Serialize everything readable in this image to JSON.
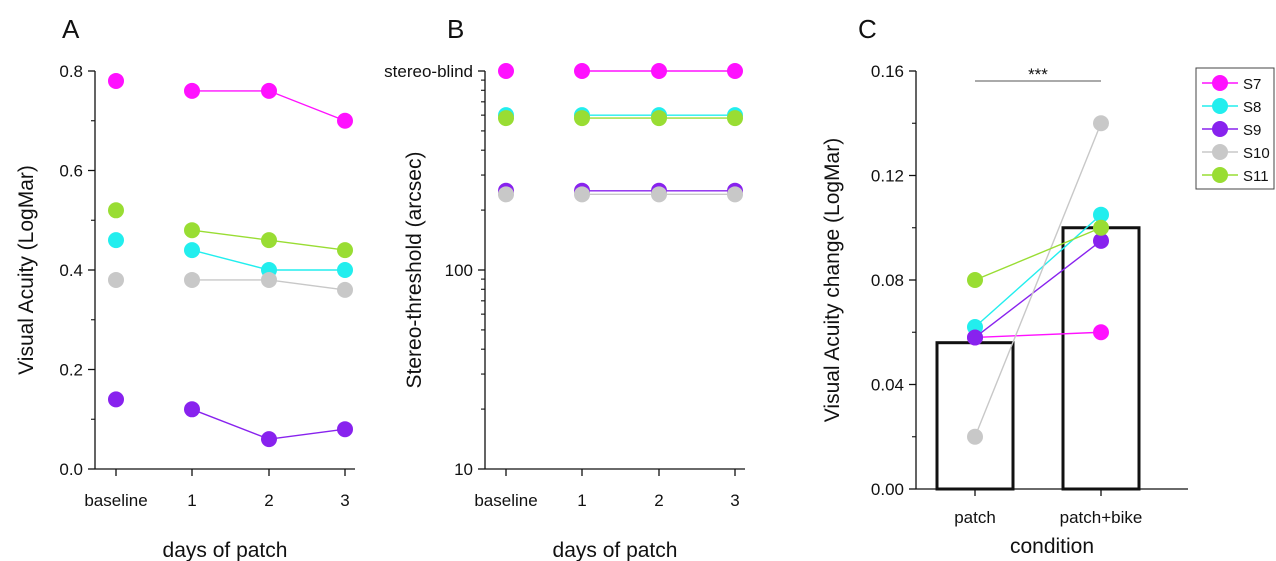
{
  "colors": {
    "S7": "#ff11ff",
    "S8": "#22eeee",
    "S9": "#8822ee",
    "S10": "#c8c8c8",
    "S11": "#99dd33"
  },
  "legend": [
    "S7",
    "S8",
    "S9",
    "S10",
    "S11"
  ],
  "chart_data": [
    {
      "panel": "A",
      "type": "line",
      "xlabel": "days of patch",
      "ylabel": "Visual Acuity (LogMar)",
      "categories": [
        "baseline",
        "1",
        "2",
        "3"
      ],
      "ylim": [
        0,
        0.8
      ],
      "yticks": [
        "0.0",
        "0.2",
        "0.4",
        "0.6",
        "0.8"
      ],
      "series": [
        {
          "name": "S7",
          "values": [
            0.78,
            0.76,
            0.76,
            0.7
          ]
        },
        {
          "name": "S8",
          "values": [
            0.46,
            0.44,
            0.4,
            0.4
          ]
        },
        {
          "name": "S9",
          "values": [
            0.14,
            0.12,
            0.06,
            0.08
          ]
        },
        {
          "name": "S10",
          "values": [
            0.38,
            0.38,
            0.38,
            0.36
          ]
        },
        {
          "name": "S11",
          "values": [
            0.52,
            0.48,
            0.46,
            0.44
          ]
        }
      ]
    },
    {
      "panel": "B",
      "type": "line",
      "xlabel": "days of patch",
      "ylabel": "Stereo-threshold (arcsec)",
      "categories": [
        "baseline",
        "1",
        "2",
        "3"
      ],
      "yscale": "log",
      "ylim": [
        10,
        1000
      ],
      "yticks": [
        "10",
        "100",
        "stereo-blind"
      ],
      "series": [
        {
          "name": "S7",
          "values": [
            1000,
            1000,
            1000,
            1000
          ]
        },
        {
          "name": "S8",
          "values": [
            600,
            600,
            600,
            600
          ]
        },
        {
          "name": "S9",
          "values": [
            250,
            250,
            250,
            250
          ]
        },
        {
          "name": "S10",
          "values": [
            240,
            240,
            240,
            240
          ]
        },
        {
          "name": "S11",
          "values": [
            580,
            580,
            580,
            580
          ]
        }
      ]
    },
    {
      "panel": "C",
      "type": "bar",
      "xlabel": "condition",
      "ylabel": "Visual Acuity change (LogMar)",
      "categories": [
        "patch",
        "patch+bike"
      ],
      "bar_values": [
        0.056,
        0.1
      ],
      "ylim": [
        0,
        0.16
      ],
      "yticks": [
        "0.00",
        "0.04",
        "0.08",
        "0.12",
        "0.16"
      ],
      "significance": "***",
      "series": [
        {
          "name": "S7",
          "values": [
            0.058,
            0.06
          ]
        },
        {
          "name": "S8",
          "values": [
            0.062,
            0.105
          ]
        },
        {
          "name": "S9",
          "values": [
            0.058,
            0.095
          ]
        },
        {
          "name": "S10",
          "values": [
            0.02,
            0.14
          ]
        },
        {
          "name": "S11",
          "values": [
            0.08,
            0.1
          ]
        }
      ]
    }
  ]
}
